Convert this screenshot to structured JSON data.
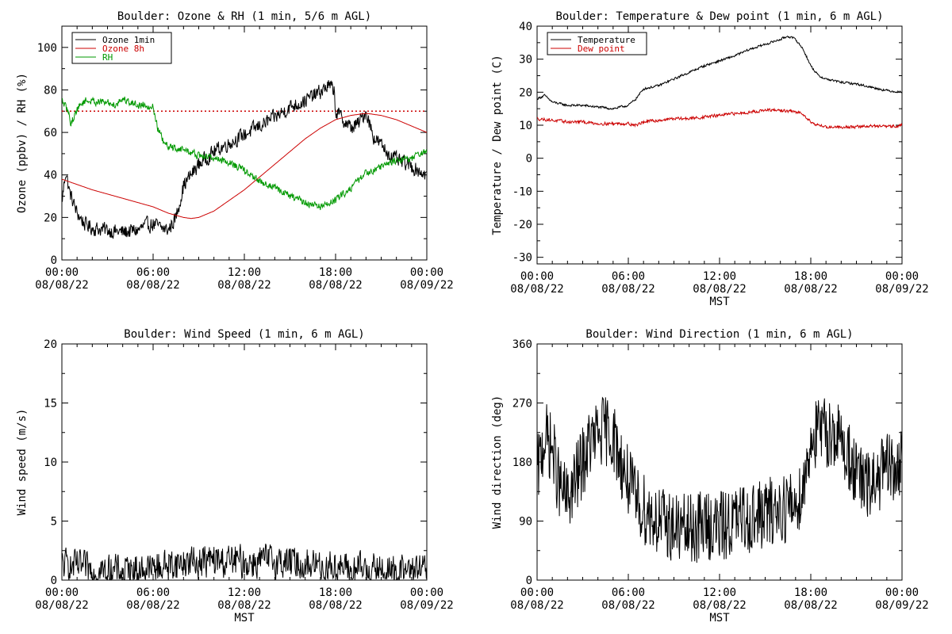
{
  "chart_data": [
    {
      "type": "line",
      "title": "Boulder: Ozone & RH (1 min, 5/6 m AGL)",
      "ylabel": "Ozone (ppbv) / RH (%)",
      "xlabel": "",
      "xticks": [
        "00:00",
        "06:00",
        "12:00",
        "18:00",
        "00:00"
      ],
      "xdates": [
        "08/08/22",
        "08/08/22",
        "08/08/22",
        "08/08/22",
        "08/09/22"
      ],
      "xlim": [
        0,
        24
      ],
      "ylim": [
        0,
        110
      ],
      "yticks": [
        0,
        20,
        40,
        60,
        80,
        100
      ],
      "reference_line": {
        "y": 70,
        "color": "#cc0000",
        "style": "dotted"
      },
      "legend": "top-left",
      "series": [
        {
          "name": "Ozone 1min",
          "color": "#000000",
          "noise": 3,
          "x": [
            0,
            0.25,
            0.5,
            1,
            1.5,
            2,
            3,
            4,
            5,
            5.5,
            6,
            6.5,
            7,
            7.5,
            8,
            9,
            10,
            11,
            12,
            13,
            14,
            15,
            16,
            17,
            17.5,
            17.9,
            18,
            18.5,
            19,
            19.5,
            20,
            20.5,
            21,
            21.5,
            22,
            23,
            24
          ],
          "y": [
            27,
            42,
            32,
            22,
            17,
            15,
            14,
            13,
            14,
            16,
            17,
            15,
            14,
            20,
            35,
            45,
            51,
            55,
            59,
            63,
            67,
            72,
            75,
            79,
            82,
            80,
            70,
            66,
            62,
            64,
            70,
            58,
            54,
            50,
            47,
            44,
            40
          ]
        },
        {
          "name": "Ozone 8h",
          "color": "#cc0000",
          "noise": 0,
          "x": [
            0,
            2,
            4,
            6,
            7,
            8,
            8.5,
            9,
            10,
            11,
            12,
            13,
            14,
            15,
            16,
            17,
            18,
            19,
            20,
            21,
            22,
            23,
            24
          ],
          "y": [
            38,
            33,
            29,
            25,
            22,
            20,
            19.5,
            20,
            23,
            28,
            33,
            39,
            45,
            51,
            57,
            62,
            66,
            68,
            69,
            68,
            66,
            63,
            60
          ]
        },
        {
          "name": "RH",
          "color": "#009900",
          "noise": 1.5,
          "x": [
            0,
            0.4,
            0.6,
            1,
            1.5,
            3,
            3.5,
            4,
            4.5,
            5,
            5.5,
            6,
            6.3,
            6.7,
            7,
            8,
            9,
            10,
            11,
            12,
            13,
            14,
            15,
            16,
            17,
            18,
            19,
            20,
            21,
            22,
            23,
            24
          ],
          "y": [
            75,
            70,
            64,
            71,
            75,
            74,
            73,
            76,
            74,
            73,
            73,
            72,
            62,
            55,
            53,
            52,
            49,
            48,
            46,
            42,
            37,
            34,
            30,
            27,
            25,
            28,
            34,
            41,
            44,
            47,
            48,
            51
          ]
        }
      ]
    },
    {
      "type": "line",
      "title": "Boulder: Temperature & Dew point (1 min, 6 m AGL)",
      "ylabel": "Temperature / Dew point (C)",
      "xlabel": "MST",
      "xticks": [
        "00:00",
        "06:00",
        "12:00",
        "18:00",
        "00:00"
      ],
      "xdates": [
        "08/08/22",
        "08/08/22",
        "08/08/22",
        "08/08/22",
        "08/09/22"
      ],
      "xlim": [
        0,
        24
      ],
      "ylim": [
        -32,
        40
      ],
      "yticks": [
        -30,
        -20,
        -10,
        0,
        10,
        20,
        30,
        40
      ],
      "legend": "top-left",
      "series": [
        {
          "name": "Temperature",
          "color": "#000000",
          "noise": 0.3,
          "x": [
            0,
            0.5,
            1,
            2,
            3,
            4,
            5,
            5.5,
            6,
            6.5,
            7,
            8,
            9,
            10,
            11,
            12,
            13,
            14,
            15,
            16,
            16.5,
            17,
            17.5,
            18,
            18.5,
            19,
            20,
            21,
            22,
            23,
            24
          ],
          "y": [
            18,
            19,
            17,
            16,
            16,
            15.5,
            15,
            15.5,
            16,
            18,
            21,
            22,
            24,
            26,
            28,
            29.5,
            31,
            33,
            34.5,
            36,
            37,
            36,
            33,
            28,
            25,
            24,
            23,
            22.5,
            21.5,
            20.5,
            20
          ]
        },
        {
          "name": "Dew point",
          "color": "#cc0000",
          "noise": 0.4,
          "x": [
            0,
            1,
            2,
            3,
            4,
            5,
            6,
            6.5,
            7,
            8,
            9,
            10,
            11,
            12,
            13,
            14,
            15,
            16,
            17,
            17.5,
            18,
            18.5,
            19,
            20,
            21,
            22,
            23,
            24
          ],
          "y": [
            12,
            11.5,
            11,
            11,
            10.5,
            10.5,
            10.5,
            10,
            11,
            11.5,
            12,
            12,
            12.5,
            13,
            13.5,
            14,
            14.5,
            14.5,
            14,
            13.5,
            11,
            10,
            9.5,
            9.5,
            9.5,
            9.8,
            9.5,
            10
          ]
        }
      ]
    },
    {
      "type": "line",
      "title": "Boulder: Wind Speed (1 min, 6 m AGL)",
      "ylabel": "Wind speed (m/s)",
      "xlabel": "MST",
      "xticks": [
        "00:00",
        "06:00",
        "12:00",
        "18:00",
        "00:00"
      ],
      "xdates": [
        "08/08/22",
        "08/08/22",
        "08/08/22",
        "08/08/22",
        "08/09/22"
      ],
      "xlim": [
        0,
        24
      ],
      "ylim": [
        0,
        20
      ],
      "yticks": [
        0,
        5,
        10,
        15,
        20
      ],
      "series": [
        {
          "name": "",
          "color": "#000000",
          "noise": 1.2,
          "floor": 0,
          "x": [
            0,
            1,
            2,
            3,
            4,
            5,
            6,
            7,
            8,
            9,
            10,
            11,
            12,
            13,
            14,
            15,
            16,
            17,
            18,
            19,
            20,
            21,
            22,
            23,
            24
          ],
          "y": [
            1.3,
            1.1,
            0.8,
            0.7,
            0.8,
            0.9,
            1.0,
            1.3,
            1.5,
            1.6,
            1.6,
            1.6,
            1.5,
            1.6,
            1.6,
            1.5,
            1.4,
            1.3,
            1.1,
            0.9,
            0.9,
            0.8,
            0.7,
            0.8,
            0.6
          ]
        }
      ]
    },
    {
      "type": "line",
      "title": "Boulder: Wind Direction (1 min, 6 m AGL)",
      "ylabel": "Wind direction (deg)",
      "xlabel": "MST",
      "xticks": [
        "00:00",
        "06:00",
        "12:00",
        "18:00",
        "00:00"
      ],
      "xdates": [
        "08/08/22",
        "08/08/22",
        "08/08/22",
        "08/08/22",
        "08/09/22"
      ],
      "xlim": [
        0,
        24
      ],
      "ylim": [
        0,
        360
      ],
      "yticks": [
        0,
        90,
        180,
        270,
        360
      ],
      "series": [
        {
          "name": "",
          "color": "#000000",
          "noise": 55,
          "floor": 0,
          "x": [
            0,
            0.5,
            1,
            1.5,
            2,
            2.5,
            3,
            3.5,
            4,
            4.5,
            5,
            5.5,
            6,
            6.5,
            7,
            7.5,
            8,
            9,
            10,
            11,
            12,
            13,
            14,
            15,
            16,
            17,
            17.5,
            18,
            18.5,
            19,
            19.5,
            20,
            20.5,
            21,
            21.5,
            22,
            22.5,
            23,
            23.5,
            24
          ],
          "y": [
            160,
            220,
            200,
            140,
            120,
            150,
            180,
            210,
            220,
            230,
            220,
            180,
            150,
            120,
            110,
            100,
            90,
            80,
            75,
            85,
            80,
            90,
            95,
            100,
            110,
            115,
            140,
            215,
            225,
            225,
            225,
            210,
            190,
            160,
            145,
            140,
            160,
            170,
            165,
            175
          ]
        }
      ]
    }
  ]
}
